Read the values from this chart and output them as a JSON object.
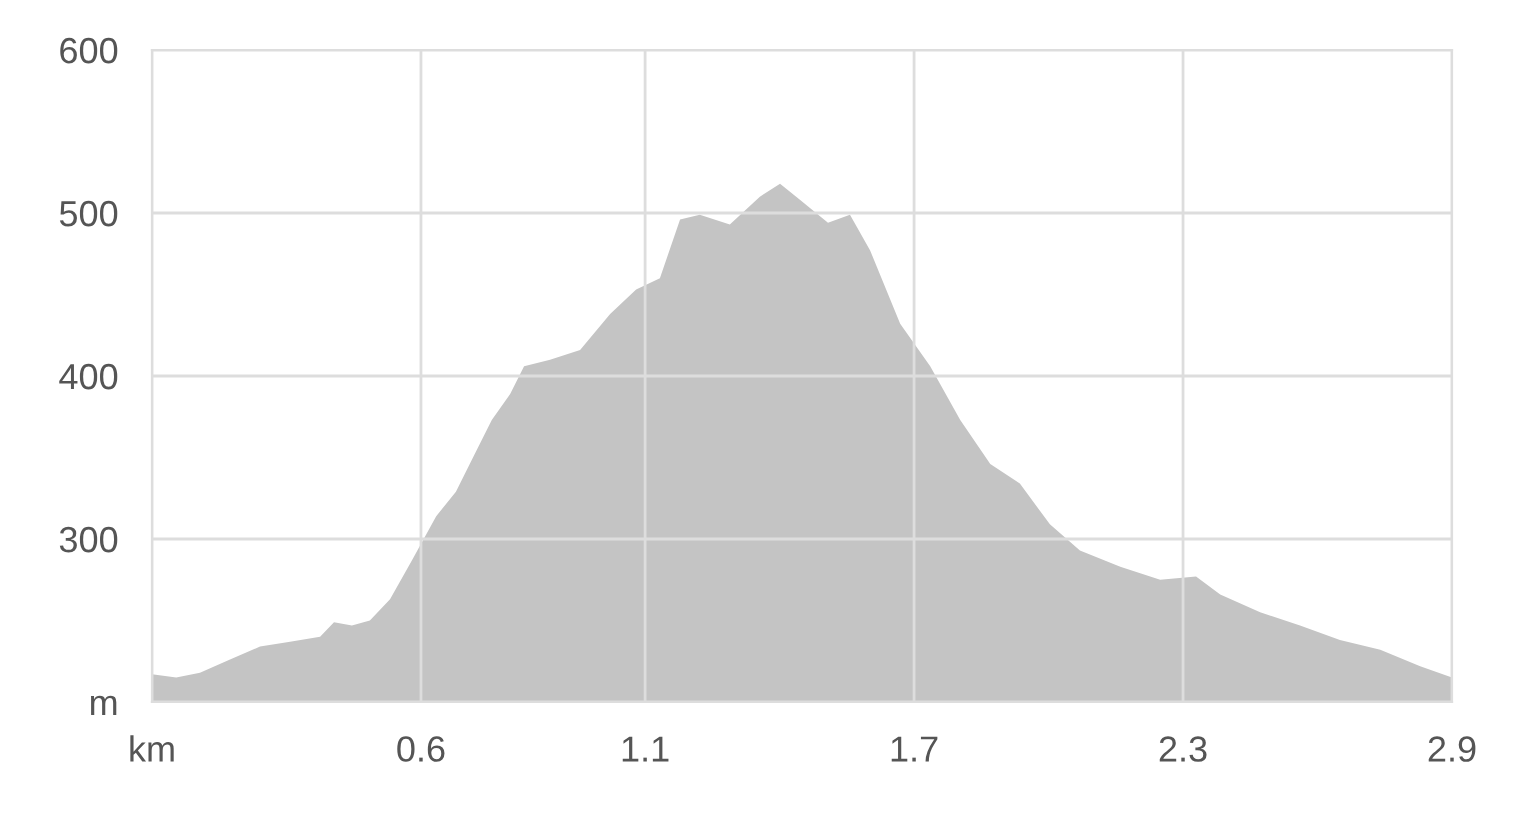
{
  "chart_data": {
    "type": "area",
    "x": [
      0,
      0.054,
      0.107,
      0.174,
      0.241,
      0.308,
      0.375,
      0.406,
      0.446,
      0.486,
      0.531,
      0.58,
      0.634,
      0.678,
      0.718,
      0.758,
      0.799,
      0.83,
      0.888,
      0.955,
      1.022,
      1.08,
      1.133,
      1.178,
      1.222,
      1.289,
      1.356,
      1.401,
      1.446,
      1.508,
      1.557,
      1.602,
      1.669,
      1.736,
      1.803,
      1.87,
      1.936,
      2.003,
      2.07,
      2.16,
      2.249,
      2.329,
      2.383,
      2.472,
      2.561,
      2.65,
      2.74,
      2.829,
      2.9
    ],
    "series": [
      {
        "color": "#c4c4c4",
        "values": [
          217,
          215,
          218,
          226,
          234,
          237,
          240,
          249,
          247,
          250,
          263,
          287,
          314,
          329,
          351,
          373,
          389,
          406,
          410,
          416,
          438,
          453,
          460,
          496,
          499,
          493,
          510,
          518,
          508,
          494,
          499,
          477,
          432,
          406,
          373,
          346,
          334,
          309,
          293,
          283,
          275,
          277,
          266,
          255,
          247,
          238,
          232,
          222,
          215
        ]
      }
    ],
    "xlim": [
      0,
      2.9
    ],
    "xticks": [
      {
        "value": 0,
        "label": "km"
      },
      0.6,
      1.1,
      1.7,
      2.3,
      2.9
    ],
    "ylim": [
      200,
      600
    ],
    "yticks": [
      {
        "value": 200,
        "label": "m"
      },
      300,
      400,
      500,
      600
    ],
    "grid": true
  }
}
